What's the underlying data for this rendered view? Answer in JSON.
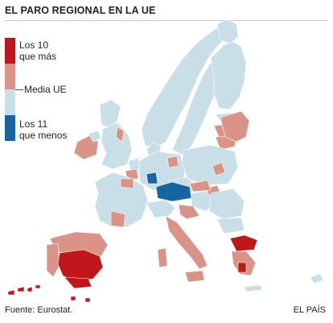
{
  "title": "EL PARO REGIONAL EN LA UE",
  "legend": {
    "top10": "Los 10\nque más",
    "media": "Media UE",
    "bottom11": "Los 11\nque menos"
  },
  "colors": {
    "top10": "#c0171b",
    "above": "#d99387",
    "below": "#c9dfe8",
    "bottom11": "#1665a2",
    "border": "#ffffff"
  },
  "source": "Fuente: Eurostat.",
  "credit": "EL PAÍS"
}
